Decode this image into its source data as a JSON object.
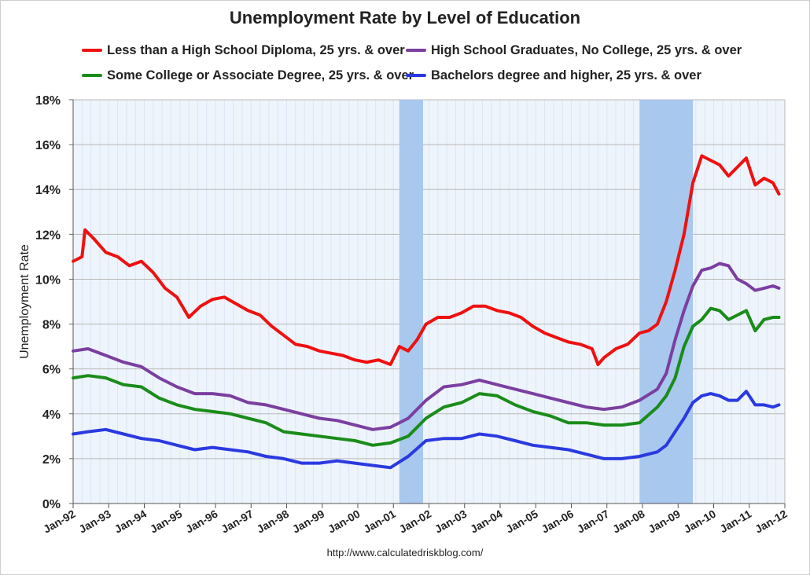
{
  "chart_data": {
    "type": "line",
    "title": "Unemployment Rate by Level of Education",
    "xlabel": "",
    "ylabel": "Unemployment Rate",
    "source": "http://www.calculatedriskblog.com/",
    "ylim": [
      0,
      18
    ],
    "xlim": [
      "1992-01",
      "2012-01"
    ],
    "y_ticks": [
      "0%",
      "2%",
      "4%",
      "6%",
      "8%",
      "10%",
      "12%",
      "14%",
      "16%",
      "18%"
    ],
    "x_ticks": [
      "Jan-92",
      "Jan-93",
      "Jan-94",
      "Jan-95",
      "Jan-96",
      "Jan-97",
      "Jan-98",
      "Jan-99",
      "Jan-00",
      "Jan-01",
      "Jan-02",
      "Jan-03",
      "Jan-04",
      "Jan-05",
      "Jan-06",
      "Jan-07",
      "Jan-08",
      "Jan-09",
      "Jan-10",
      "Jan-11",
      "Jan-12"
    ],
    "grid": true,
    "legend_position": "top",
    "recessions": [
      {
        "start": "2001-03",
        "end": "2001-11"
      },
      {
        "start": "2007-12",
        "end": "2009-06"
      }
    ],
    "series": [
      {
        "name": "Less than a High School Diploma, 25 yrs. & over",
        "color": "#ee1111",
        "points": [
          [
            "1992-01",
            10.8
          ],
          [
            "1992-04",
            11.0
          ],
          [
            "1992-05",
            12.2
          ],
          [
            "1992-08",
            11.8
          ],
          [
            "1992-12",
            11.2
          ],
          [
            "1993-04",
            11.0
          ],
          [
            "1993-08",
            10.6
          ],
          [
            "1993-12",
            10.8
          ],
          [
            "1994-04",
            10.3
          ],
          [
            "1994-08",
            9.6
          ],
          [
            "1994-12",
            9.2
          ],
          [
            "1995-04",
            8.3
          ],
          [
            "1995-08",
            8.8
          ],
          [
            "1995-12",
            9.1
          ],
          [
            "1996-04",
            9.2
          ],
          [
            "1996-08",
            8.9
          ],
          [
            "1996-12",
            8.6
          ],
          [
            "1997-04",
            8.4
          ],
          [
            "1997-08",
            7.9
          ],
          [
            "1997-12",
            7.5
          ],
          [
            "1998-04",
            7.1
          ],
          [
            "1998-08",
            7.0
          ],
          [
            "1998-12",
            6.8
          ],
          [
            "1999-04",
            6.7
          ],
          [
            "1999-08",
            6.6
          ],
          [
            "1999-12",
            6.4
          ],
          [
            "2000-04",
            6.3
          ],
          [
            "2000-08",
            6.4
          ],
          [
            "2000-12",
            6.2
          ],
          [
            "2001-03",
            7.0
          ],
          [
            "2001-06",
            6.8
          ],
          [
            "2001-09",
            7.3
          ],
          [
            "2001-12",
            8.0
          ],
          [
            "2002-04",
            8.3
          ],
          [
            "2002-08",
            8.3
          ],
          [
            "2002-12",
            8.5
          ],
          [
            "2003-04",
            8.8
          ],
          [
            "2003-08",
            8.8
          ],
          [
            "2003-12",
            8.6
          ],
          [
            "2004-04",
            8.5
          ],
          [
            "2004-08",
            8.3
          ],
          [
            "2004-12",
            7.9
          ],
          [
            "2005-04",
            7.6
          ],
          [
            "2005-08",
            7.4
          ],
          [
            "2005-12",
            7.2
          ],
          [
            "2006-04",
            7.1
          ],
          [
            "2006-08",
            6.9
          ],
          [
            "2006-10",
            6.2
          ],
          [
            "2006-12",
            6.5
          ],
          [
            "2007-04",
            6.9
          ],
          [
            "2007-08",
            7.1
          ],
          [
            "2007-12",
            7.6
          ],
          [
            "2008-03",
            7.7
          ],
          [
            "2008-06",
            8.0
          ],
          [
            "2008-09",
            9.0
          ],
          [
            "2008-12",
            10.4
          ],
          [
            "2009-03",
            12.0
          ],
          [
            "2009-06",
            14.3
          ],
          [
            "2009-09",
            15.5
          ],
          [
            "2009-12",
            15.3
          ],
          [
            "2010-03",
            15.1
          ],
          [
            "2010-06",
            14.6
          ],
          [
            "2010-09",
            15.0
          ],
          [
            "2010-12",
            15.4
          ],
          [
            "2011-03",
            14.2
          ],
          [
            "2011-06",
            14.5
          ],
          [
            "2011-09",
            14.3
          ],
          [
            "2011-11",
            13.8
          ]
        ]
      },
      {
        "name": "High School Graduates, No College, 25 yrs. & over",
        "color": "#7b3fa0",
        "points": [
          [
            "1992-01",
            6.8
          ],
          [
            "1992-06",
            6.9
          ],
          [
            "1992-12",
            6.6
          ],
          [
            "1993-06",
            6.3
          ],
          [
            "1993-12",
            6.1
          ],
          [
            "1994-06",
            5.6
          ],
          [
            "1994-12",
            5.2
          ],
          [
            "1995-06",
            4.9
          ],
          [
            "1995-12",
            4.9
          ],
          [
            "1996-06",
            4.8
          ],
          [
            "1996-12",
            4.5
          ],
          [
            "1997-06",
            4.4
          ],
          [
            "1997-12",
            4.2
          ],
          [
            "1998-06",
            4.0
          ],
          [
            "1998-12",
            3.8
          ],
          [
            "1999-06",
            3.7
          ],
          [
            "1999-12",
            3.5
          ],
          [
            "2000-06",
            3.3
          ],
          [
            "2000-12",
            3.4
          ],
          [
            "2001-06",
            3.8
          ],
          [
            "2001-12",
            4.6
          ],
          [
            "2002-06",
            5.2
          ],
          [
            "2002-12",
            5.3
          ],
          [
            "2003-06",
            5.5
          ],
          [
            "2003-12",
            5.3
          ],
          [
            "2004-06",
            5.1
          ],
          [
            "2004-12",
            4.9
          ],
          [
            "2005-06",
            4.7
          ],
          [
            "2005-12",
            4.5
          ],
          [
            "2006-06",
            4.3
          ],
          [
            "2006-12",
            4.2
          ],
          [
            "2007-06",
            4.3
          ],
          [
            "2007-12",
            4.6
          ],
          [
            "2008-06",
            5.1
          ],
          [
            "2008-09",
            5.8
          ],
          [
            "2008-12",
            7.3
          ],
          [
            "2009-03",
            8.6
          ],
          [
            "2009-06",
            9.7
          ],
          [
            "2009-09",
            10.4
          ],
          [
            "2009-12",
            10.5
          ],
          [
            "2010-03",
            10.7
          ],
          [
            "2010-06",
            10.6
          ],
          [
            "2010-09",
            10.0
          ],
          [
            "2010-12",
            9.8
          ],
          [
            "2011-03",
            9.5
          ],
          [
            "2011-06",
            9.6
          ],
          [
            "2011-09",
            9.7
          ],
          [
            "2011-11",
            9.6
          ]
        ]
      },
      {
        "name": "Some College or Associate Degree, 25 yrs. & over",
        "color": "#1a8c1a",
        "points": [
          [
            "1992-01",
            5.6
          ],
          [
            "1992-06",
            5.7
          ],
          [
            "1992-12",
            5.6
          ],
          [
            "1993-06",
            5.3
          ],
          [
            "1993-12",
            5.2
          ],
          [
            "1994-06",
            4.7
          ],
          [
            "1994-12",
            4.4
          ],
          [
            "1995-06",
            4.2
          ],
          [
            "1995-12",
            4.1
          ],
          [
            "1996-06",
            4.0
          ],
          [
            "1996-12",
            3.8
          ],
          [
            "1997-06",
            3.6
          ],
          [
            "1997-12",
            3.2
          ],
          [
            "1998-06",
            3.1
          ],
          [
            "1998-12",
            3.0
          ],
          [
            "1999-06",
            2.9
          ],
          [
            "1999-12",
            2.8
          ],
          [
            "2000-06",
            2.6
          ],
          [
            "2000-12",
            2.7
          ],
          [
            "2001-06",
            3.0
          ],
          [
            "2001-12",
            3.8
          ],
          [
            "2002-06",
            4.3
          ],
          [
            "2002-12",
            4.5
          ],
          [
            "2003-06",
            4.9
          ],
          [
            "2003-12",
            4.8
          ],
          [
            "2004-06",
            4.4
          ],
          [
            "2004-12",
            4.1
          ],
          [
            "2005-06",
            3.9
          ],
          [
            "2005-12",
            3.6
          ],
          [
            "2006-06",
            3.6
          ],
          [
            "2006-12",
            3.5
          ],
          [
            "2007-06",
            3.5
          ],
          [
            "2007-12",
            3.6
          ],
          [
            "2008-06",
            4.3
          ],
          [
            "2008-09",
            4.8
          ],
          [
            "2008-12",
            5.6
          ],
          [
            "2009-03",
            7.0
          ],
          [
            "2009-06",
            7.9
          ],
          [
            "2009-09",
            8.2
          ],
          [
            "2009-12",
            8.7
          ],
          [
            "2010-03",
            8.6
          ],
          [
            "2010-06",
            8.2
          ],
          [
            "2010-09",
            8.4
          ],
          [
            "2010-12",
            8.6
          ],
          [
            "2011-03",
            7.7
          ],
          [
            "2011-06",
            8.2
          ],
          [
            "2011-09",
            8.3
          ],
          [
            "2011-11",
            8.3
          ]
        ]
      },
      {
        "name": "Bachelors degree and higher, 25 yrs. & over",
        "color": "#2a3ae0",
        "points": [
          [
            "1992-01",
            3.1
          ],
          [
            "1992-06",
            3.2
          ],
          [
            "1992-12",
            3.3
          ],
          [
            "1993-06",
            3.1
          ],
          [
            "1993-12",
            2.9
          ],
          [
            "1994-06",
            2.8
          ],
          [
            "1994-12",
            2.6
          ],
          [
            "1995-06",
            2.4
          ],
          [
            "1995-12",
            2.5
          ],
          [
            "1996-06",
            2.4
          ],
          [
            "1996-12",
            2.3
          ],
          [
            "1997-06",
            2.1
          ],
          [
            "1997-12",
            2.0
          ],
          [
            "1998-06",
            1.8
          ],
          [
            "1998-12",
            1.8
          ],
          [
            "1999-06",
            1.9
          ],
          [
            "1999-12",
            1.8
          ],
          [
            "2000-06",
            1.7
          ],
          [
            "2000-12",
            1.6
          ],
          [
            "2001-06",
            2.1
          ],
          [
            "2001-12",
            2.8
          ],
          [
            "2002-06",
            2.9
          ],
          [
            "2002-12",
            2.9
          ],
          [
            "2003-06",
            3.1
          ],
          [
            "2003-12",
            3.0
          ],
          [
            "2004-06",
            2.8
          ],
          [
            "2004-12",
            2.6
          ],
          [
            "2005-06",
            2.5
          ],
          [
            "2005-12",
            2.4
          ],
          [
            "2006-06",
            2.2
          ],
          [
            "2006-12",
            2.0
          ],
          [
            "2007-06",
            2.0
          ],
          [
            "2007-12",
            2.1
          ],
          [
            "2008-06",
            2.3
          ],
          [
            "2008-09",
            2.6
          ],
          [
            "2008-12",
            3.2
          ],
          [
            "2009-03",
            3.8
          ],
          [
            "2009-06",
            4.5
          ],
          [
            "2009-09",
            4.8
          ],
          [
            "2009-12",
            4.9
          ],
          [
            "2010-03",
            4.8
          ],
          [
            "2010-06",
            4.6
          ],
          [
            "2010-09",
            4.6
          ],
          [
            "2010-12",
            5.0
          ],
          [
            "2011-03",
            4.4
          ],
          [
            "2011-06",
            4.4
          ],
          [
            "2011-09",
            4.3
          ],
          [
            "2011-11",
            4.4
          ]
        ]
      }
    ]
  }
}
